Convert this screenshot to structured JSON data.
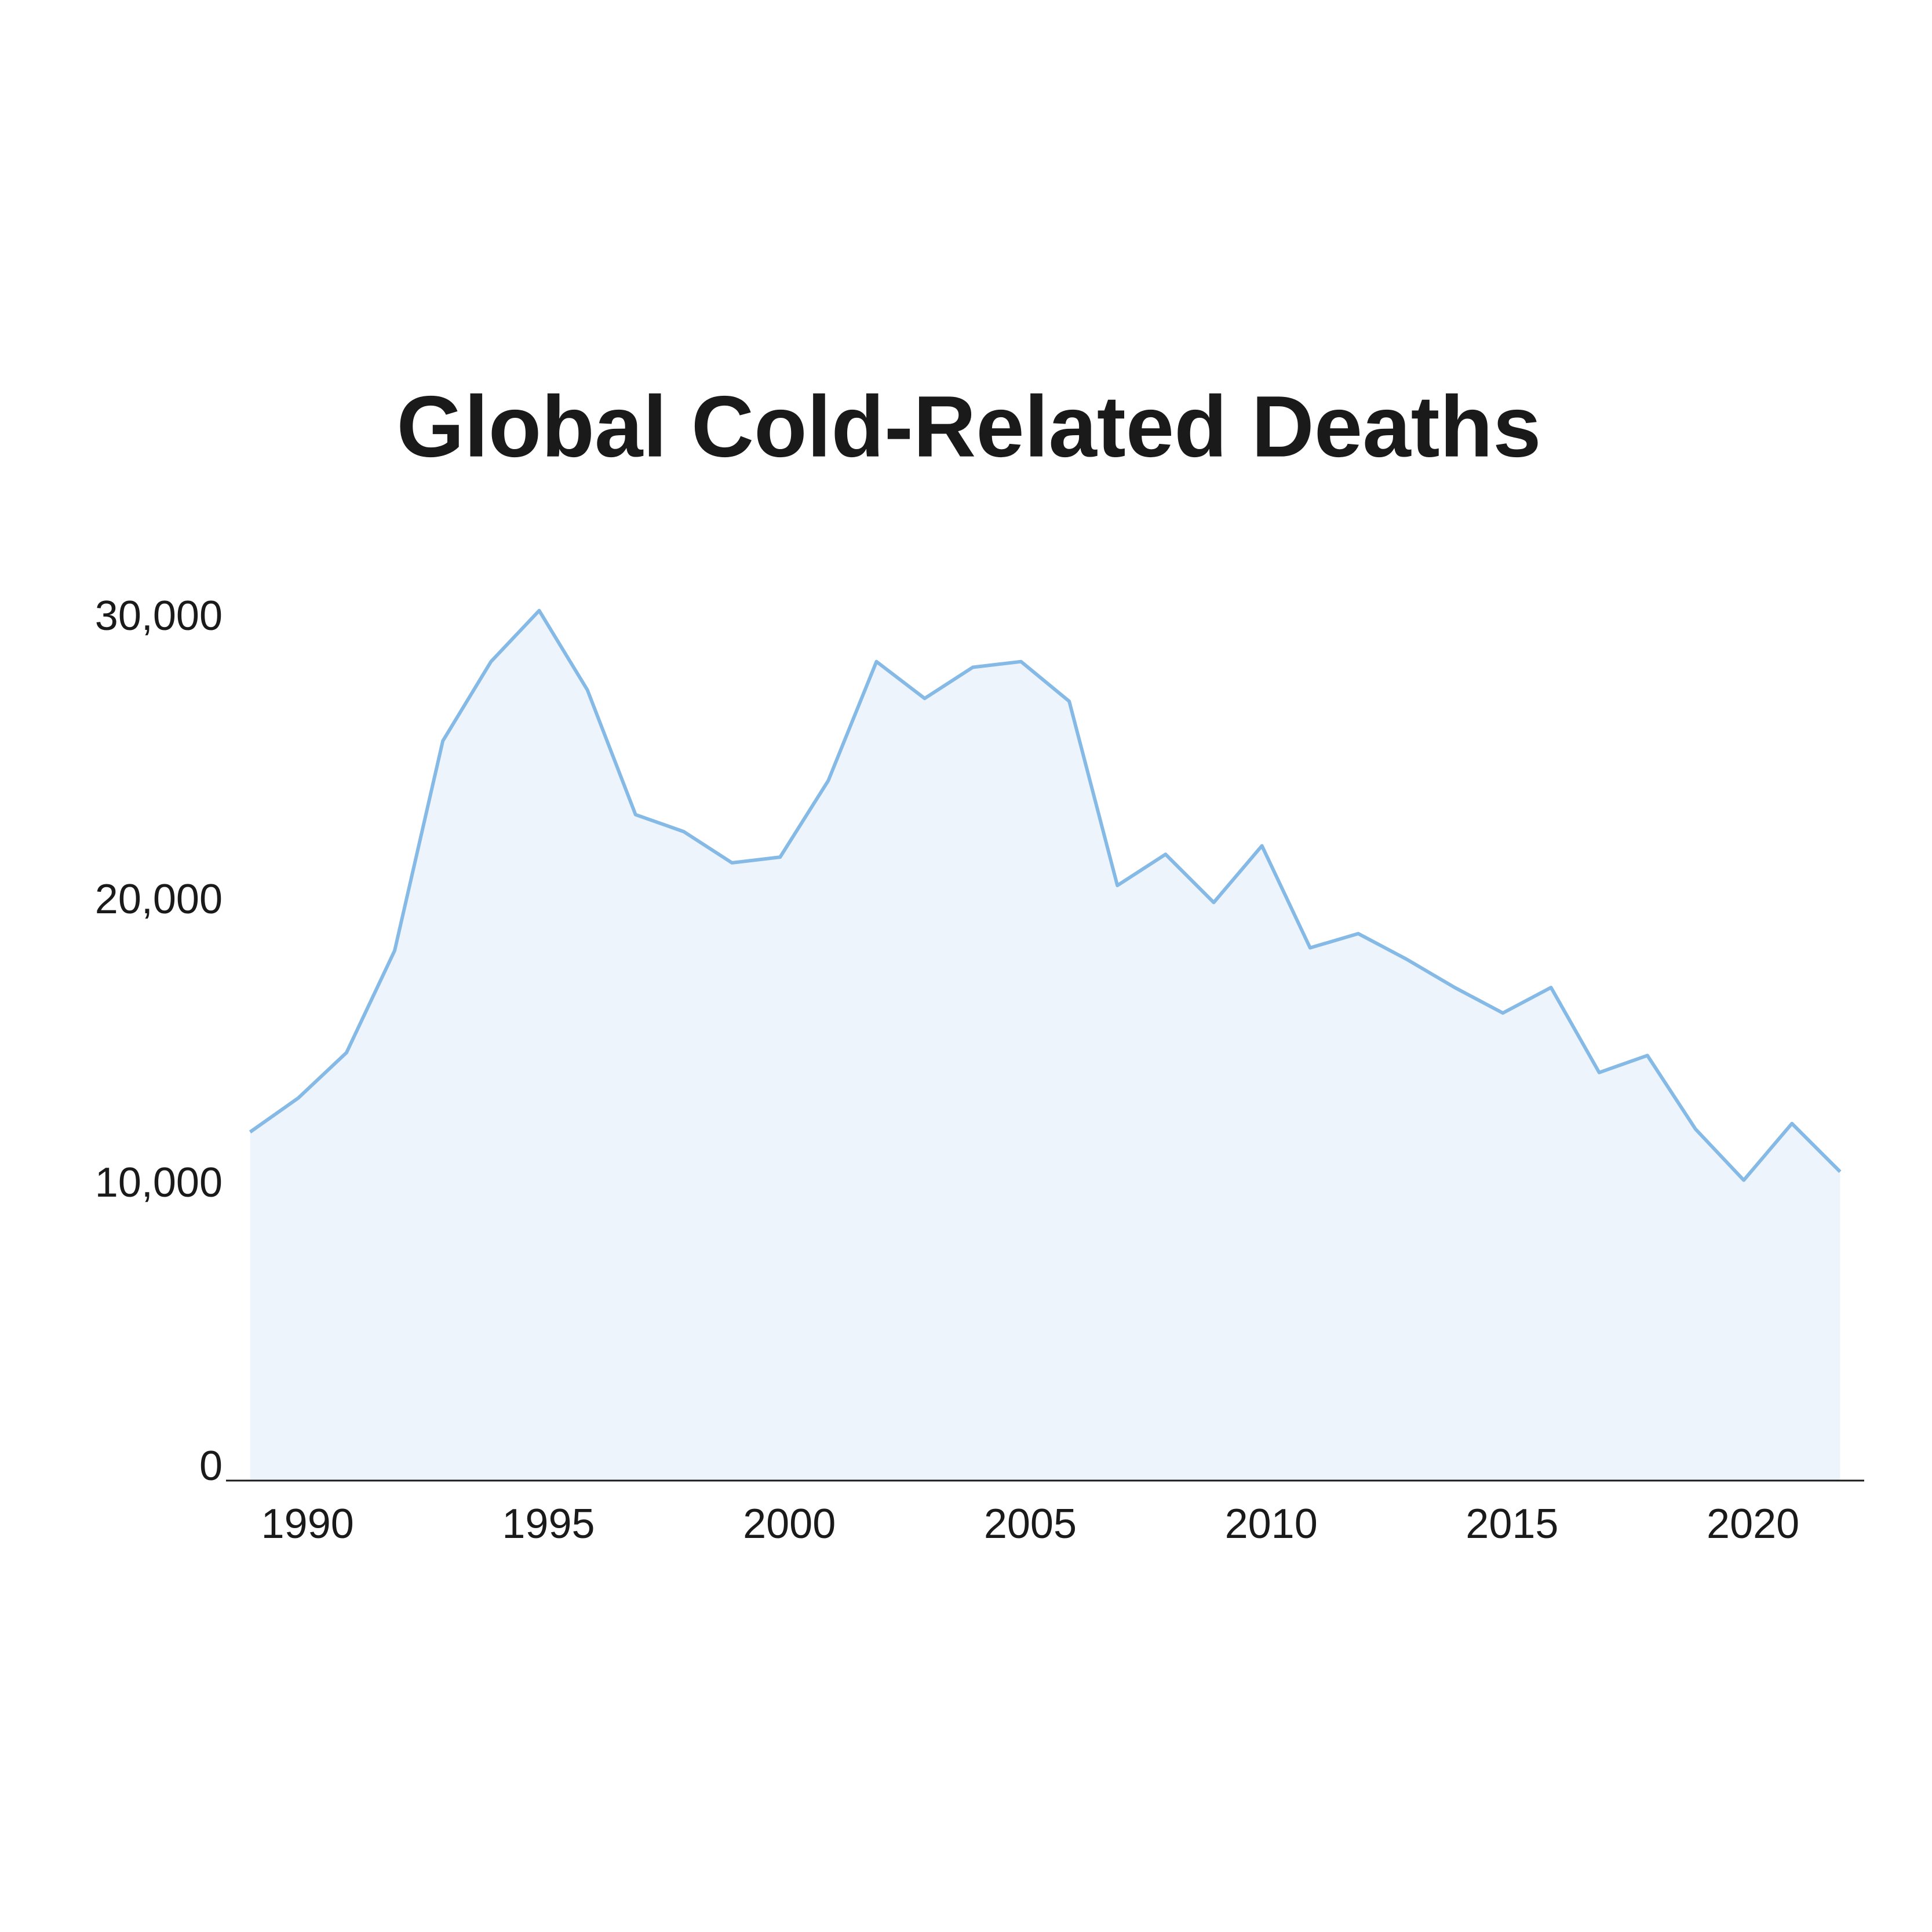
{
  "chart_data": {
    "type": "area",
    "title": "Global Cold-Related Deaths",
    "x": [
      1989,
      1990,
      1991,
      1992,
      1993,
      1994,
      1995,
      1996,
      1997,
      1998,
      1999,
      2000,
      2001,
      2002,
      2003,
      2004,
      2005,
      2006,
      2007,
      2008,
      2009,
      2010,
      2011,
      2012,
      2013,
      2014,
      2015,
      2016,
      2017,
      2018,
      2019,
      2020,
      2021,
      2022
    ],
    "values": [
      12300,
      13500,
      15100,
      18700,
      26100,
      28900,
      30700,
      27900,
      23500,
      22900,
      21800,
      22000,
      24700,
      28900,
      27600,
      28700,
      28900,
      27500,
      21000,
      22100,
      20400,
      22400,
      18800,
      19300,
      18400,
      17400,
      16500,
      17400,
      14400,
      15000,
      12400,
      10600,
      12600,
      10900
    ],
    "color": "#85b9e6",
    "fill_color": "#edf4fc",
    "xlim": [
      1988.5,
      2022.5
    ],
    "xticks": [
      1990,
      1995,
      2000,
      2005,
      2010,
      2015,
      2020
    ],
    "ylim": [
      0,
      31000
    ],
    "yticks": [
      0,
      {
        "value": 10000,
        "label": "10,000"
      },
      {
        "value": 20000,
        "label": "20,000"
      },
      {
        "value": 30000,
        "label": "30,000"
      }
    ],
    "grid": false
  }
}
